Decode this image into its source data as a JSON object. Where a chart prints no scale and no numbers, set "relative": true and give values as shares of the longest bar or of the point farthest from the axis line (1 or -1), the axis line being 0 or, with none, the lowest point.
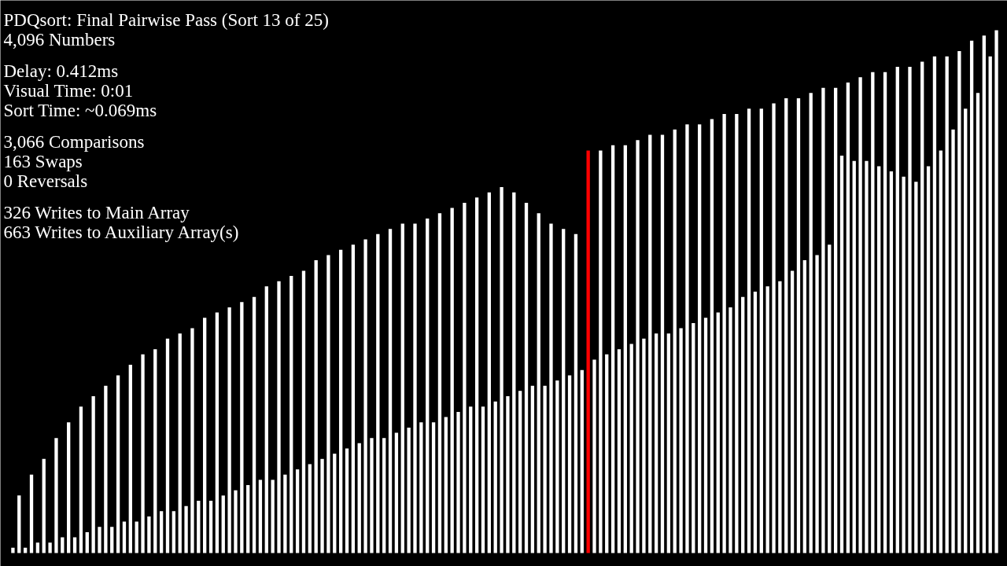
{
  "chart_data": {
    "type": "bar",
    "relative": true,
    "title": "PDQsort: Final Pairwise Pass (Sort 13 of 25)",
    "subtitle": "4,096 Numbers",
    "annotations": [
      "Delay: 0.412ms",
      "Visual Time: 0:01",
      "Sort Time: ~0.069ms",
      "3,066 Comparisons",
      "163 Swaps",
      "0 Reversals",
      "326 Writes to Main Array",
      "663 Writes to Auxiliary Array(s)"
    ],
    "categories": [
      null,
      null,
      null,
      null,
      null,
      null,
      null,
      null,
      null,
      null,
      null,
      null,
      null,
      null,
      null,
      null,
      null,
      null,
      null,
      null,
      null,
      null,
      null,
      null,
      null,
      null,
      null,
      null,
      null,
      null,
      null,
      null,
      null,
      null,
      null,
      null,
      null,
      null,
      null,
      null,
      null,
      null,
      null,
      null,
      null,
      null,
      null,
      null,
      null,
      null,
      null,
      null,
      null,
      null,
      null,
      null,
      null,
      null,
      null,
      null,
      null,
      null,
      null,
      null,
      null,
      null,
      null,
      null,
      null,
      null,
      null,
      null,
      null,
      null,
      null,
      null,
      null,
      null,
      null,
      null,
      null,
      null,
      null,
      null,
      null,
      null,
      null,
      null,
      null,
      null,
      null,
      null,
      null,
      null,
      null,
      null,
      null,
      null,
      null,
      null,
      null,
      null,
      null,
      null,
      null,
      null,
      null,
      null,
      null,
      null,
      null,
      null,
      null,
      null,
      null,
      null,
      null,
      null,
      null,
      null,
      null,
      null,
      null,
      null,
      null,
      null,
      null,
      null,
      null,
      null,
      null,
      null,
      null,
      null,
      null,
      null,
      null,
      null,
      null,
      null,
      null,
      null,
      null,
      null,
      null,
      null,
      null,
      null,
      null,
      null,
      null,
      null,
      null,
      null,
      null,
      null,
      null,
      null,
      null,
      null
    ],
    "values": [
      0.01,
      0.11,
      0.01,
      0.15,
      0.02,
      0.18,
      0.02,
      0.22,
      0.03,
      0.25,
      0.03,
      0.28,
      0.04,
      0.3,
      0.05,
      0.32,
      0.05,
      0.34,
      0.06,
      0.36,
      0.06,
      0.38,
      0.07,
      0.39,
      0.08,
      0.41,
      0.08,
      0.42,
      0.09,
      0.43,
      0.1,
      0.45,
      0.1,
      0.46,
      0.11,
      0.47,
      0.12,
      0.48,
      0.13,
      0.49,
      0.14,
      0.51,
      0.14,
      0.52,
      0.15,
      0.53,
      0.16,
      0.54,
      0.17,
      0.56,
      0.18,
      0.57,
      0.19,
      0.58,
      0.2,
      0.59,
      0.21,
      0.6,
      0.22,
      0.61,
      0.22,
      0.62,
      0.23,
      0.63,
      0.24,
      0.63,
      0.25,
      0.64,
      0.25,
      0.65,
      0.26,
      0.66,
      0.27,
      0.67,
      0.28,
      0.68,
      0.28,
      0.69,
      0.29,
      0.7,
      0.3,
      0.69,
      0.31,
      0.67,
      0.32,
      0.65,
      0.32,
      0.63,
      0.33,
      0.62,
      0.34,
      0.61,
      0.35,
      0.77,
      0.37,
      0.77,
      0.38,
      0.78,
      0.39,
      0.78,
      0.4,
      0.79,
      0.41,
      0.8,
      0.42,
      0.8,
      0.42,
      0.81,
      0.43,
      0.82,
      0.44,
      0.82,
      0.45,
      0.83,
      0.46,
      0.84,
      0.47,
      0.84,
      0.49,
      0.85,
      0.5,
      0.85,
      0.51,
      0.86,
      0.52,
      0.87,
      0.54,
      0.87,
      0.56,
      0.88,
      0.57,
      0.89,
      0.59,
      0.89,
      0.76,
      0.9,
      0.75,
      0.91,
      0.75,
      0.92,
      0.74,
      0.92,
      0.73,
      0.93,
      0.72,
      0.93,
      0.71,
      0.94,
      0.74,
      0.95,
      0.77,
      0.95,
      0.81,
      0.96,
      0.85,
      0.98,
      0.88,
      0.99,
      0.95,
      1.0
    ],
    "colors": [
      "#ffffff",
      "#ffffff",
      "#ffffff",
      "#ffffff",
      "#ffffff",
      "#ffffff",
      "#ffffff",
      "#ffffff",
      "#ffffff",
      "#ffffff",
      "#ffffff",
      "#ffffff",
      "#ffffff",
      "#ffffff",
      "#ffffff",
      "#ffffff",
      "#ffffff",
      "#ffffff",
      "#ffffff",
      "#ffffff",
      "#ffffff",
      "#ffffff",
      "#ffffff",
      "#ffffff",
      "#ffffff",
      "#ffffff",
      "#ffffff",
      "#ffffff",
      "#ffffff",
      "#ffffff",
      "#ffffff",
      "#ffffff",
      "#ffffff",
      "#ffffff",
      "#ffffff",
      "#ffffff",
      "#ffffff",
      "#ffffff",
      "#ffffff",
      "#ffffff",
      "#ffffff",
      "#ffffff",
      "#ffffff",
      "#ffffff",
      "#ffffff",
      "#ffffff",
      "#ffffff",
      "#ffffff",
      "#ffffff",
      "#ffffff",
      "#ffffff",
      "#ffffff",
      "#ffffff",
      "#ffffff",
      "#ffffff",
      "#ffffff",
      "#ffffff",
      "#ffffff",
      "#ffffff",
      "#ffffff",
      "#ffffff",
      "#ffffff",
      "#ffffff",
      "#ffffff",
      "#ffffff",
      "#ffffff",
      "#ffffff",
      "#ffffff",
      "#ffffff",
      "#ffffff",
      "#ffffff",
      "#ffffff",
      "#ffffff",
      "#ffffff",
      "#ffffff",
      "#ffffff",
      "#ffffff",
      "#ffffff",
      "#ffffff",
      "#ffffff",
      "#ffffff",
      "#ffffff",
      "#ffffff",
      "#ffffff",
      "#ffffff",
      "#ffffff",
      "#ffffff",
      "#ffffff",
      "#ffffff",
      "#ffffff",
      "#ffffff",
      "#ffffff",
      "#ffffff",
      "#ff0000",
      "#ffffff",
      "#ffffff",
      "#ffffff",
      "#ffffff",
      "#ffffff",
      "#ffffff",
      "#ffffff",
      "#ffffff",
      "#ffffff",
      "#ffffff",
      "#ffffff",
      "#ffffff",
      "#ffffff",
      "#ffffff",
      "#ffffff",
      "#ffffff",
      "#ffffff",
      "#ffffff",
      "#ffffff",
      "#ffffff",
      "#ffffff",
      "#ffffff",
      "#ffffff",
      "#ffffff",
      "#ffffff",
      "#ffffff",
      "#ffffff",
      "#ffffff",
      "#ffffff",
      "#ffffff",
      "#ffffff",
      "#ffffff",
      "#ffffff",
      "#ffffff",
      "#ffffff",
      "#ffffff",
      "#ffffff",
      "#ffffff",
      "#ffffff",
      "#ffffff",
      "#ffffff",
      "#ffffff",
      "#ffffff",
      "#ffffff",
      "#ffffff",
      "#ffffff",
      "#ffffff",
      "#ffffff",
      "#ffffff",
      "#ffffff",
      "#ffffff",
      "#ffffff",
      "#ffffff",
      "#ffffff",
      "#ffffff",
      "#ffffff",
      "#ffffff",
      "#ffffff",
      "#ffffff",
      "#ffffff",
      "#ffffff",
      "#ffffff",
      "#ffffff",
      "#ffffff",
      "#ffffff",
      "#ffffff"
    ],
    "grid": false,
    "tick_labels": false
  }
}
